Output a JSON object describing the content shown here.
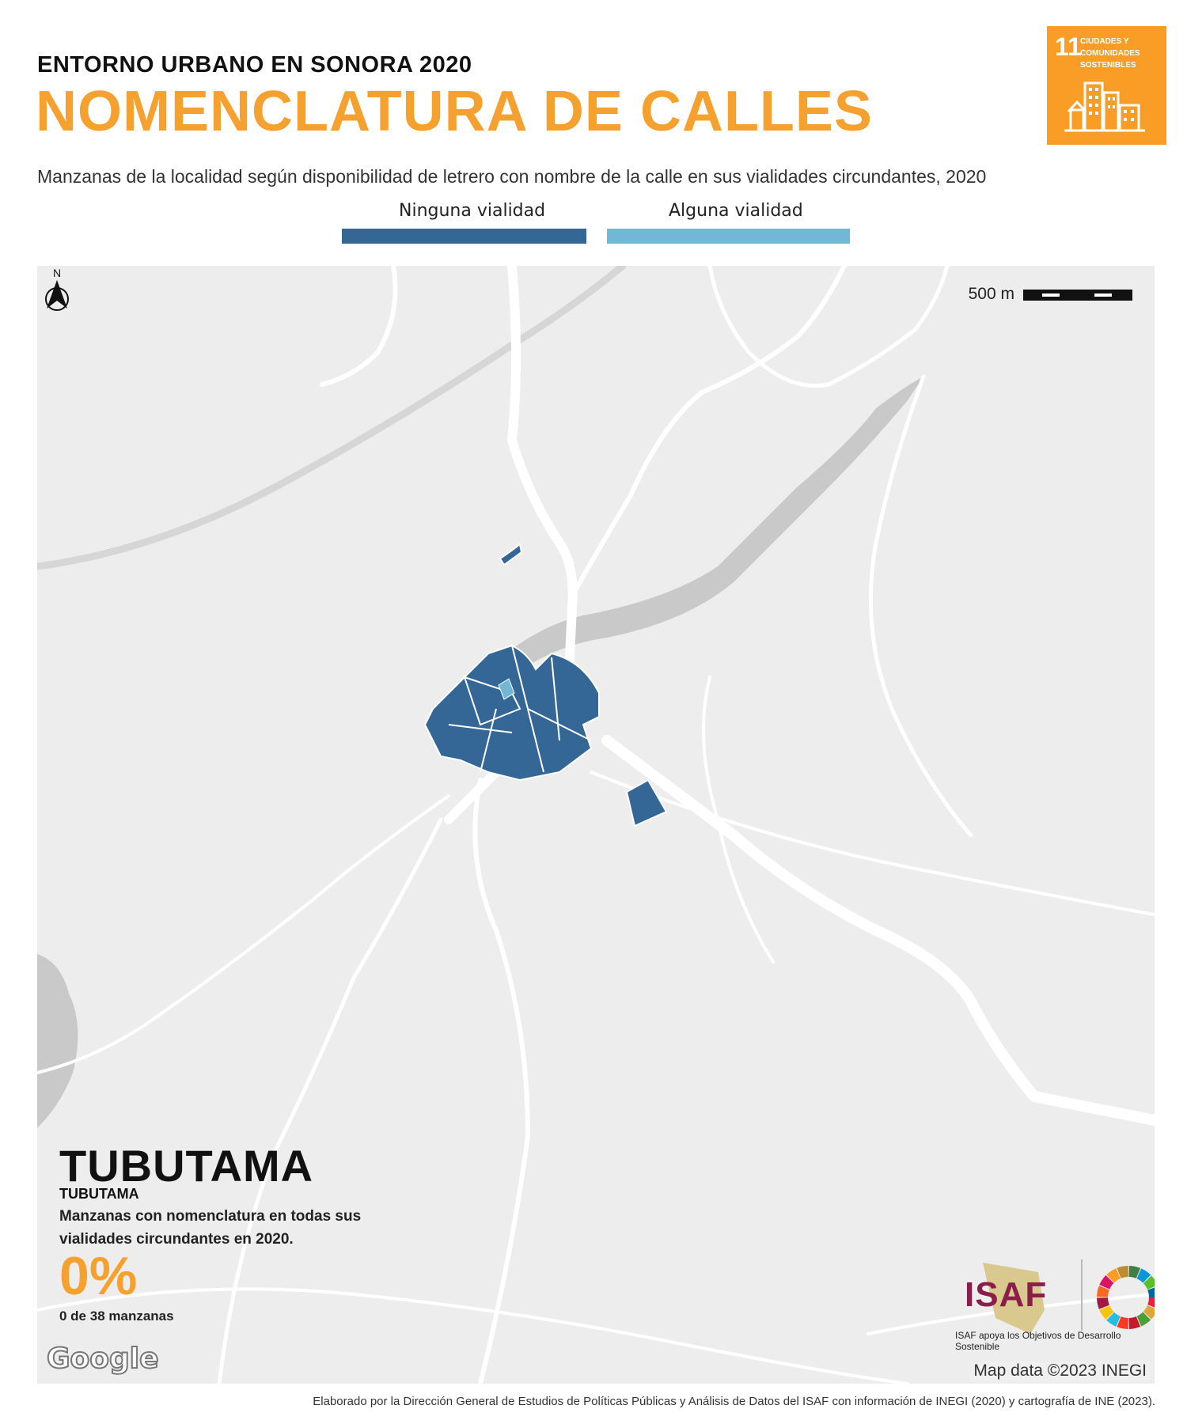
{
  "header": {
    "subtitle": "ENTORNO URBANO EN SONORA 2020",
    "title": "NOMENCLATURA DE CALLES",
    "description": "Manzanas de la localidad según disponibilidad de letrero con nombre de la calle en sus vialidades circundantes, 2020"
  },
  "sdg_badge": {
    "number": "11",
    "line1": "CIUDADES Y",
    "line2": "COMUNIDADES",
    "line3": "SOSTENIBLES",
    "color": "#f99d26"
  },
  "legend": {
    "items": [
      {
        "label": "Ninguna vialidad",
        "color": "#356796"
      },
      {
        "label": "Alguna vialidad",
        "color": "#72b8d6"
      }
    ]
  },
  "map": {
    "scale_label": "500 m",
    "north_label": "N",
    "attribution": "Map data ©2023 INEGI",
    "provider": "Google",
    "colors": {
      "background": "#ededed",
      "roads": "#ffffff",
      "water": "#c9c9c9"
    }
  },
  "locality": {
    "name": "TUBUTAMA",
    "municipality": "TUBUTAMA",
    "description": "Manzanas con nomenclatura en todas sus vialidades circundantes en 2020.",
    "percentage": "0%",
    "count": "0 de 38 manzanas"
  },
  "logos": {
    "isaf": "ISAF",
    "tagline": "ISAF apoya los Objetivos de Desarrollo Sostenible"
  },
  "footer": "Elaborado por la Dirección General de Estudios de Políticas Públicas y Análisis de Datos del ISAF con información de INEGI (2020) y cartografía de INE (2023)."
}
